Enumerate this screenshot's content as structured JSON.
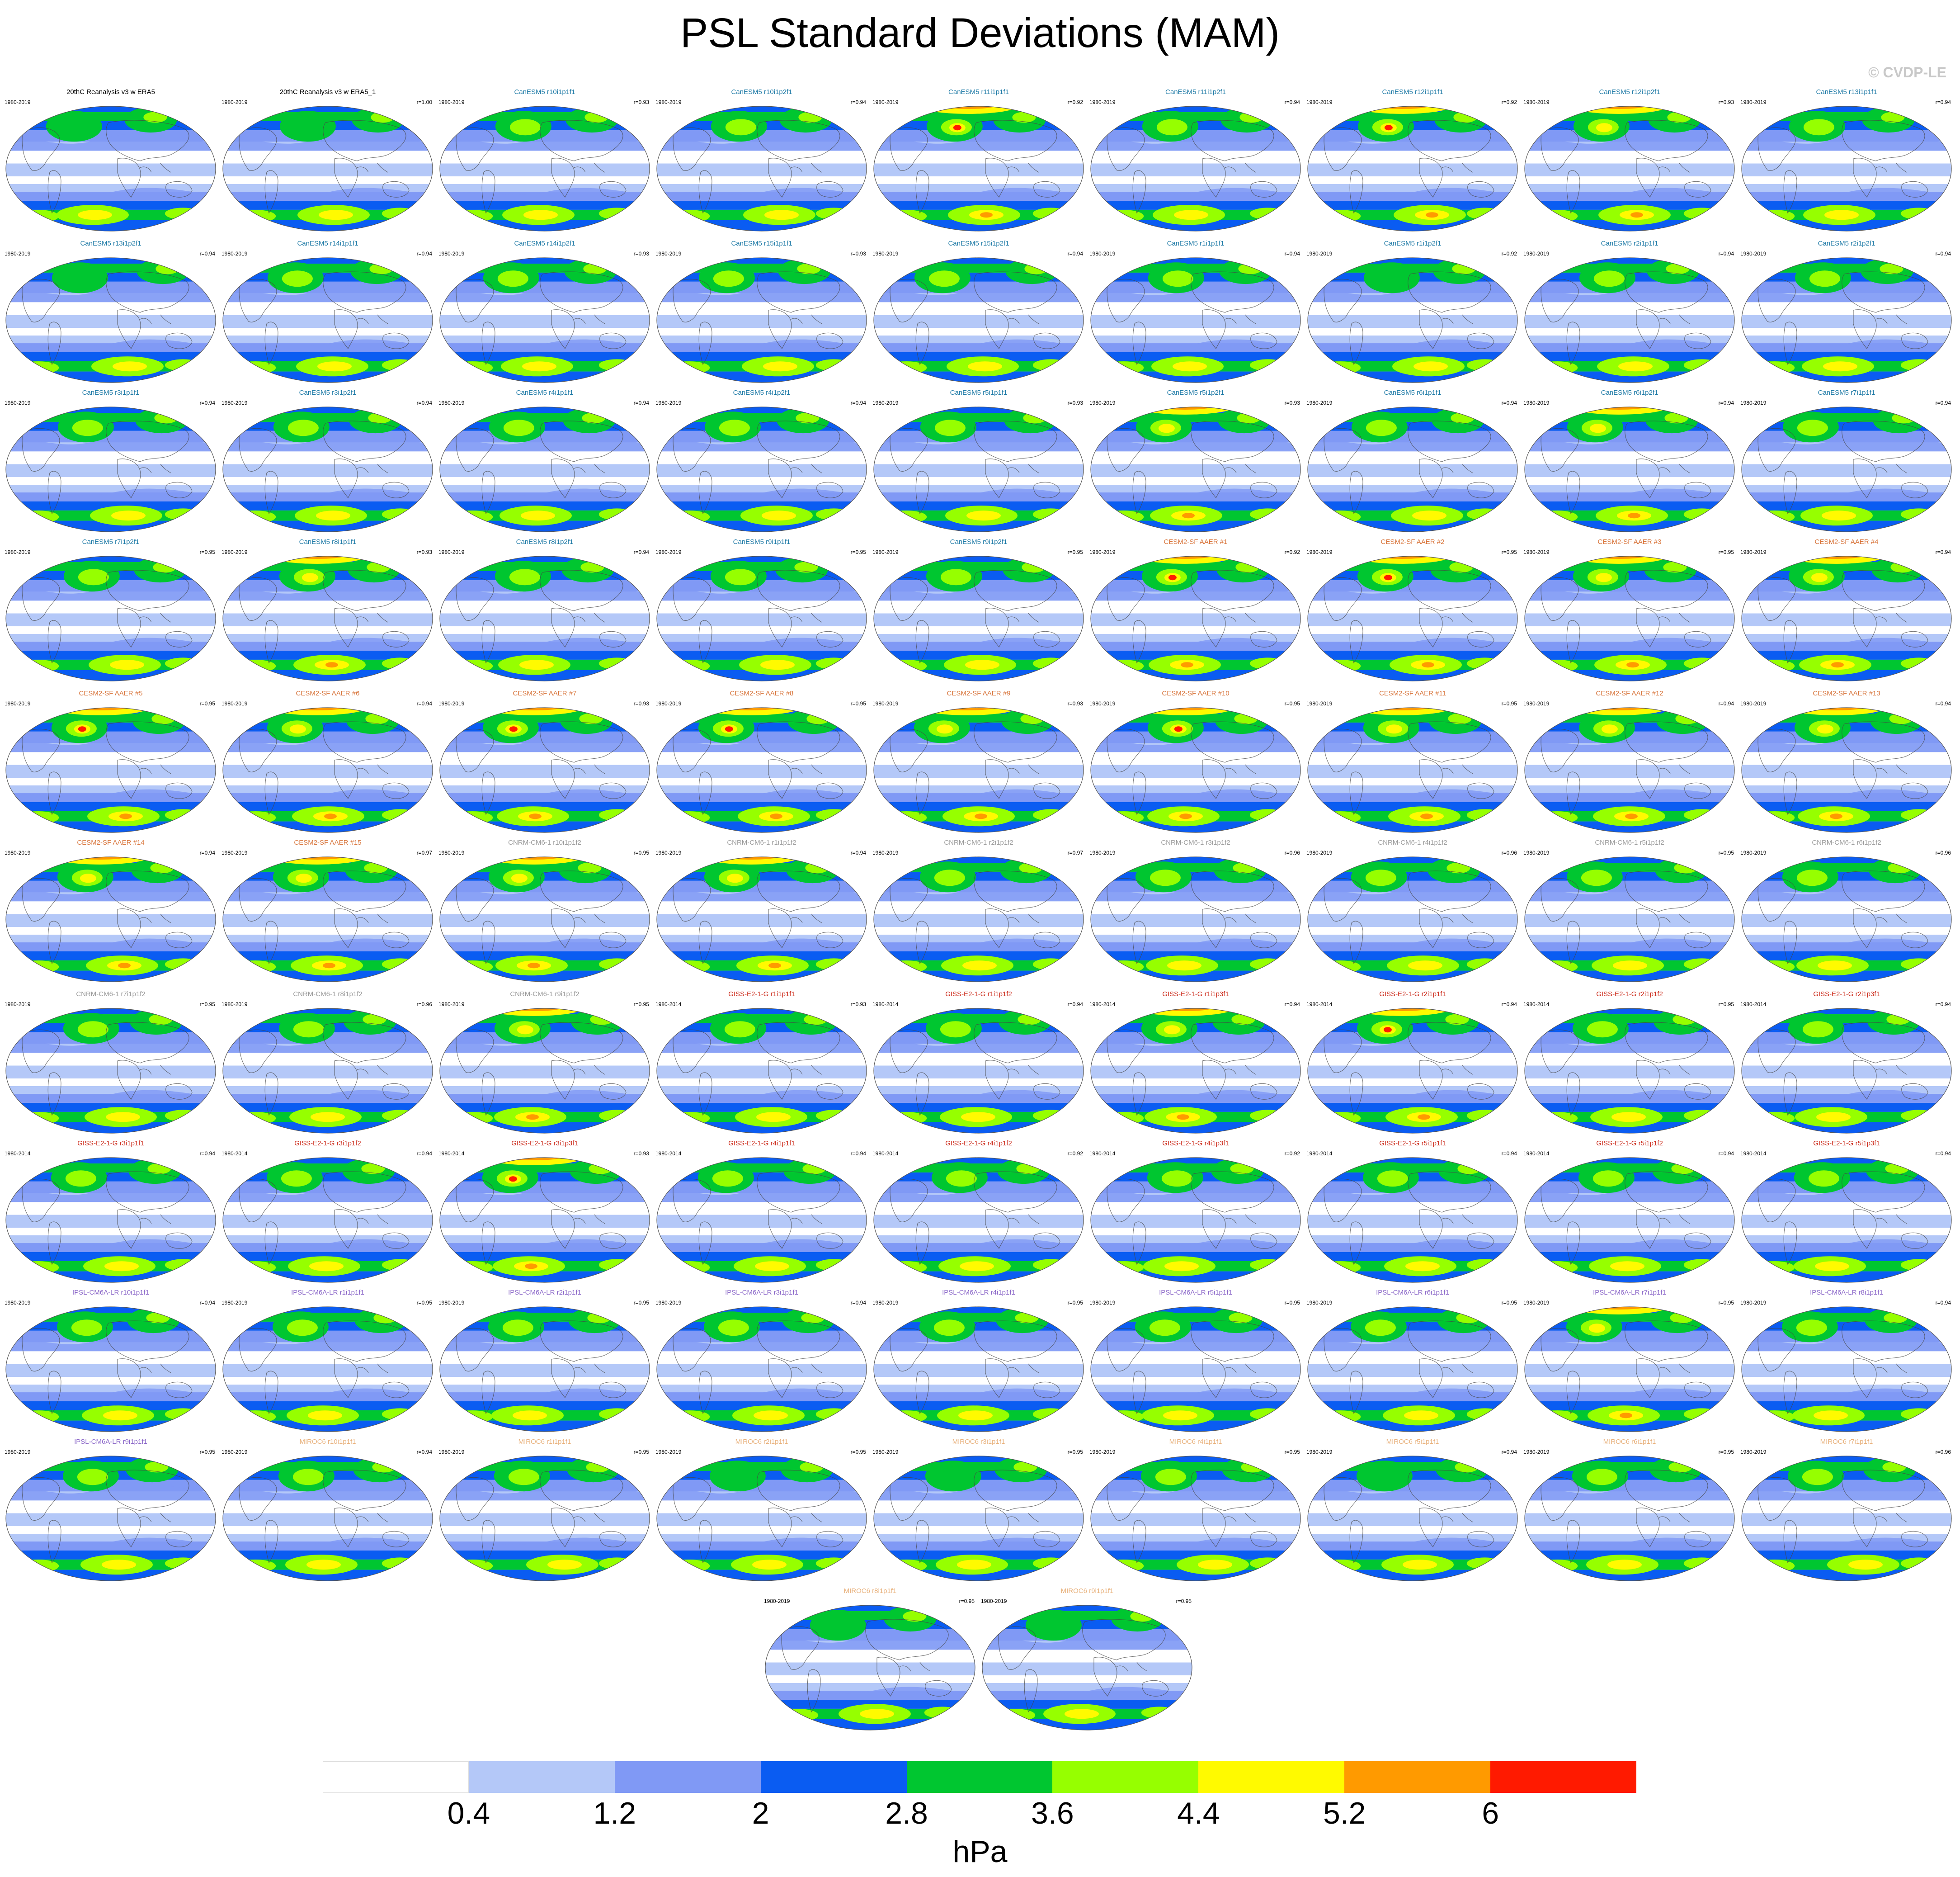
{
  "title": "PSL Standard Deviations (MAM)",
  "watermark": "© CVDP-LE",
  "colors": {
    "canesm5": "#1e7aa6",
    "cesm2": "#d8743a",
    "cnrm": "#9a9a9a",
    "giss": "#cc2a1a",
    "ipsl": "#8a66c8",
    "miroc": "#e8b07a",
    "obs": "#000000"
  },
  "chart_data": {
    "type": "heatmap",
    "variable": "PSL",
    "season": "MAM",
    "unit": "hPa",
    "colorbar": {
      "levels": [
        0.4,
        1.2,
        2,
        2.8,
        3.6,
        4.4,
        5.2,
        6
      ],
      "tick_labels": [
        "0.4",
        "1.2",
        "2",
        "2.8",
        "3.6",
        "4.4",
        "5.2",
        "6"
      ],
      "colors": [
        "#ffffff",
        "#b4c8f8",
        "#8099f5",
        "#0a5cf2",
        "#00c630",
        "#96ff00",
        "#fffa00",
        "#ff9a00",
        "#ff1a00"
      ],
      "unit_label": "hPa"
    },
    "panels": [
      {
        "title": "20thC Reanalysis v3 w ERA5",
        "years": "1980-2019",
        "r": "",
        "group": "obs",
        "intensity": 0
      },
      {
        "title": "20thC Reanalysis v3 w ERA5_1",
        "years": "1980-2019",
        "r": "r=1.00",
        "group": "obs",
        "intensity": 0
      },
      {
        "title": "CanESM5 r10i1p1f1",
        "years": "1980-2019",
        "r": "r=0.93",
        "group": "canesm5",
        "intensity": 1
      },
      {
        "title": "CanESM5 r10i1p2f1",
        "years": "1980-2019",
        "r": "r=0.94",
        "group": "canesm5",
        "intensity": 1
      },
      {
        "title": "CanESM5 r11i1p1f1",
        "years": "1980-2019",
        "r": "r=0.92",
        "group": "canesm5",
        "intensity": 3
      },
      {
        "title": "CanESM5 r11i1p2f1",
        "years": "1980-2019",
        "r": "r=0.94",
        "group": "canesm5",
        "intensity": 1
      },
      {
        "title": "CanESM5 r12i1p1f1",
        "years": "1980-2019",
        "r": "r=0.92",
        "group": "canesm5",
        "intensity": 3
      },
      {
        "title": "CanESM5 r12i1p2f1",
        "years": "1980-2019",
        "r": "r=0.93",
        "group": "canesm5",
        "intensity": 2
      },
      {
        "title": "CanESM5 r13i1p1f1",
        "years": "1980-2019",
        "r": "r=0.94",
        "group": "canesm5",
        "intensity": 1
      },
      {
        "title": "CanESM5 r13i1p2f1",
        "years": "1980-2019",
        "r": "r=0.94",
        "group": "canesm5",
        "intensity": 0
      },
      {
        "title": "CanESM5 r14i1p1f1",
        "years": "1980-2019",
        "r": "r=0.94",
        "group": "canesm5",
        "intensity": 1
      },
      {
        "title": "CanESM5 r14i1p2f1",
        "years": "1980-2019",
        "r": "r=0.93",
        "group": "canesm5",
        "intensity": 1
      },
      {
        "title": "CanESM5 r15i1p1f1",
        "years": "1980-2019",
        "r": "r=0.93",
        "group": "canesm5",
        "intensity": 1
      },
      {
        "title": "CanESM5 r15i1p2f1",
        "years": "1980-2019",
        "r": "r=0.94",
        "group": "canesm5",
        "intensity": 1
      },
      {
        "title": "CanESM5 r1i1p1f1",
        "years": "1980-2019",
        "r": "r=0.94",
        "group": "canesm5",
        "intensity": 1
      },
      {
        "title": "CanESM5 r1i1p2f1",
        "years": "1980-2019",
        "r": "r=0.92",
        "group": "canesm5",
        "intensity": 0
      },
      {
        "title": "CanESM5 r2i1p1f1",
        "years": "1980-2019",
        "r": "r=0.94",
        "group": "canesm5",
        "intensity": 1
      },
      {
        "title": "CanESM5 r2i1p2f1",
        "years": "1980-2019",
        "r": "r=0.94",
        "group": "canesm5",
        "intensity": 1
      },
      {
        "title": "CanESM5 r3i1p1f1",
        "years": "1980-2019",
        "r": "r=0.94",
        "group": "canesm5",
        "intensity": 1
      },
      {
        "title": "CanESM5 r3i1p2f1",
        "years": "1980-2019",
        "r": "r=0.94",
        "group": "canesm5",
        "intensity": 1
      },
      {
        "title": "CanESM5 r4i1p1f1",
        "years": "1980-2019",
        "r": "r=0.94",
        "group": "canesm5",
        "intensity": 1
      },
      {
        "title": "CanESM5 r4i1p2f1",
        "years": "1980-2019",
        "r": "r=0.94",
        "group": "canesm5",
        "intensity": 1
      },
      {
        "title": "CanESM5 r5i1p1f1",
        "years": "1980-2019",
        "r": "r=0.93",
        "group": "canesm5",
        "intensity": 1
      },
      {
        "title": "CanESM5 r5i1p2f1",
        "years": "1980-2019",
        "r": "r=0.93",
        "group": "canesm5",
        "intensity": 2
      },
      {
        "title": "CanESM5 r6i1p1f1",
        "years": "1980-2019",
        "r": "r=0.94",
        "group": "canesm5",
        "intensity": 1
      },
      {
        "title": "CanESM5 r6i1p2f1",
        "years": "1980-2019",
        "r": "r=0.94",
        "group": "canesm5",
        "intensity": 2
      },
      {
        "title": "CanESM5 r7i1p1f1",
        "years": "1980-2019",
        "r": "r=0.94",
        "group": "canesm5",
        "intensity": 1
      },
      {
        "title": "CanESM5 r7i1p2f1",
        "years": "1980-2019",
        "r": "r=0.95",
        "group": "canesm5",
        "intensity": 1
      },
      {
        "title": "CanESM5 r8i1p1f1",
        "years": "1980-2019",
        "r": "r=0.93",
        "group": "canesm5",
        "intensity": 2
      },
      {
        "title": "CanESM5 r8i1p2f1",
        "years": "1980-2019",
        "r": "r=0.94",
        "group": "canesm5",
        "intensity": 1
      },
      {
        "title": "CanESM5 r9i1p1f1",
        "years": "1980-2019",
        "r": "r=0.95",
        "group": "canesm5",
        "intensity": 1
      },
      {
        "title": "CanESM5 r9i1p2f1",
        "years": "1980-2019",
        "r": "r=0.95",
        "group": "canesm5",
        "intensity": 1
      },
      {
        "title": "CESM2-SF AAER #1",
        "years": "1980-2019",
        "r": "r=0.92",
        "group": "cesm2",
        "intensity": 3
      },
      {
        "title": "CESM2-SF AAER #2",
        "years": "1980-2019",
        "r": "r=0.95",
        "group": "cesm2",
        "intensity": 3
      },
      {
        "title": "CESM2-SF AAER #3",
        "years": "1980-2019",
        "r": "r=0.95",
        "group": "cesm2",
        "intensity": 2
      },
      {
        "title": "CESM2-SF AAER #4",
        "years": "1980-2019",
        "r": "r=0.94",
        "group": "cesm2",
        "intensity": 2
      },
      {
        "title": "CESM2-SF AAER #5",
        "years": "1980-2019",
        "r": "r=0.95",
        "group": "cesm2",
        "intensity": 3
      },
      {
        "title": "CESM2-SF AAER #6",
        "years": "1980-2019",
        "r": "r=0.94",
        "group": "cesm2",
        "intensity": 2
      },
      {
        "title": "CESM2-SF AAER #7",
        "years": "1980-2019",
        "r": "r=0.93",
        "group": "cesm2",
        "intensity": 3
      },
      {
        "title": "CESM2-SF AAER #8",
        "years": "1980-2019",
        "r": "r=0.95",
        "group": "cesm2",
        "intensity": 3
      },
      {
        "title": "CESM2-SF AAER #9",
        "years": "1980-2019",
        "r": "r=0.93",
        "group": "cesm2",
        "intensity": 2
      },
      {
        "title": "CESM2-SF AAER #10",
        "years": "1980-2019",
        "r": "r=0.95",
        "group": "cesm2",
        "intensity": 3
      },
      {
        "title": "CESM2-SF AAER #11",
        "years": "1980-2019",
        "r": "r=0.95",
        "group": "cesm2",
        "intensity": 2
      },
      {
        "title": "CESM2-SF AAER #12",
        "years": "1980-2019",
        "r": "r=0.94",
        "group": "cesm2",
        "intensity": 2
      },
      {
        "title": "CESM2-SF AAER #13",
        "years": "1980-2019",
        "r": "r=0.94",
        "group": "cesm2",
        "intensity": 2
      },
      {
        "title": "CESM2-SF AAER #14",
        "years": "1980-2019",
        "r": "r=0.94",
        "group": "cesm2",
        "intensity": 2
      },
      {
        "title": "CESM2-SF AAER #15",
        "years": "1980-2019",
        "r": "r=0.97",
        "group": "cesm2",
        "intensity": 2
      },
      {
        "title": "CNRM-CM6-1 r10i1p1f2",
        "years": "1980-2019",
        "r": "r=0.95",
        "group": "cnrm",
        "intensity": 2
      },
      {
        "title": "CNRM-CM6-1 r1i1p1f2",
        "years": "1980-2019",
        "r": "r=0.94",
        "group": "cnrm",
        "intensity": 2
      },
      {
        "title": "CNRM-CM6-1 r2i1p1f2",
        "years": "1980-2019",
        "r": "r=0.97",
        "group": "cnrm",
        "intensity": 1
      },
      {
        "title": "CNRM-CM6-1 r3i1p1f2",
        "years": "1980-2019",
        "r": "r=0.96",
        "group": "cnrm",
        "intensity": 1
      },
      {
        "title": "CNRM-CM6-1 r4i1p1f2",
        "years": "1980-2019",
        "r": "r=0.96",
        "group": "cnrm",
        "intensity": 1
      },
      {
        "title": "CNRM-CM6-1 r5i1p1f2",
        "years": "1980-2019",
        "r": "r=0.95",
        "group": "cnrm",
        "intensity": 1
      },
      {
        "title": "CNRM-CM6-1 r6i1p1f2",
        "years": "1980-2019",
        "r": "r=0.96",
        "group": "cnrm",
        "intensity": 1
      },
      {
        "title": "CNRM-CM6-1 r7i1p1f2",
        "years": "1980-2019",
        "r": "r=0.95",
        "group": "cnrm",
        "intensity": 1
      },
      {
        "title": "CNRM-CM6-1 r8i1p1f2",
        "years": "1980-2019",
        "r": "r=0.96",
        "group": "cnrm",
        "intensity": 1
      },
      {
        "title": "CNRM-CM6-1 r9i1p1f2",
        "years": "1980-2019",
        "r": "r=0.95",
        "group": "cnrm",
        "intensity": 2
      },
      {
        "title": "GISS-E2-1-G r1i1p1f1",
        "years": "1980-2014",
        "r": "r=0.93",
        "group": "giss",
        "intensity": 1
      },
      {
        "title": "GISS-E2-1-G r1i1p1f2",
        "years": "1980-2014",
        "r": "r=0.94",
        "group": "giss",
        "intensity": 1
      },
      {
        "title": "GISS-E2-1-G r1i1p3f1",
        "years": "1980-2014",
        "r": "r=0.94",
        "group": "giss",
        "intensity": 2
      },
      {
        "title": "GISS-E2-1-G r2i1p1f1",
        "years": "1980-2014",
        "r": "r=0.94",
        "group": "giss",
        "intensity": 3
      },
      {
        "title": "GISS-E2-1-G r2i1p1f2",
        "years": "1980-2014",
        "r": "r=0.95",
        "group": "giss",
        "intensity": 1
      },
      {
        "title": "GISS-E2-1-G r2i1p3f1",
        "years": "1980-2014",
        "r": "r=0.94",
        "group": "giss",
        "intensity": 1
      },
      {
        "title": "GISS-E2-1-G r3i1p1f1",
        "years": "1980-2014",
        "r": "r=0.94",
        "group": "giss",
        "intensity": 1
      },
      {
        "title": "GISS-E2-1-G r3i1p1f2",
        "years": "1980-2014",
        "r": "r=0.94",
        "group": "giss",
        "intensity": 1
      },
      {
        "title": "GISS-E2-1-G r3i1p3f1",
        "years": "1980-2014",
        "r": "r=0.93",
        "group": "giss",
        "intensity": 3
      },
      {
        "title": "GISS-E2-1-G r4i1p1f1",
        "years": "1980-2014",
        "r": "r=0.94",
        "group": "giss",
        "intensity": 1
      },
      {
        "title": "GISS-E2-1-G r4i1p1f2",
        "years": "1980-2014",
        "r": "r=0.92",
        "group": "giss",
        "intensity": 1
      },
      {
        "title": "GISS-E2-1-G r4i1p3f1",
        "years": "1980-2014",
        "r": "r=0.92",
        "group": "giss",
        "intensity": 1
      },
      {
        "title": "GISS-E2-1-G r5i1p1f1",
        "years": "1980-2014",
        "r": "r=0.94",
        "group": "giss",
        "intensity": 1
      },
      {
        "title": "GISS-E2-1-G r5i1p1f2",
        "years": "1980-2014",
        "r": "r=0.94",
        "group": "giss",
        "intensity": 1
      },
      {
        "title": "GISS-E2-1-G r5i1p3f1",
        "years": "1980-2014",
        "r": "r=0.94",
        "group": "giss",
        "intensity": 1
      },
      {
        "title": "IPSL-CM6A-LR r10i1p1f1",
        "years": "1980-2019",
        "r": "r=0.94",
        "group": "ipsl",
        "intensity": 1
      },
      {
        "title": "IPSL-CM6A-LR r1i1p1f1",
        "years": "1980-2019",
        "r": "r=0.95",
        "group": "ipsl",
        "intensity": 1
      },
      {
        "title": "IPSL-CM6A-LR r2i1p1f1",
        "years": "1980-2019",
        "r": "r=0.95",
        "group": "ipsl",
        "intensity": 1
      },
      {
        "title": "IPSL-CM6A-LR r3i1p1f1",
        "years": "1980-2019",
        "r": "r=0.94",
        "group": "ipsl",
        "intensity": 1
      },
      {
        "title": "IPSL-CM6A-LR r4i1p1f1",
        "years": "1980-2019",
        "r": "r=0.95",
        "group": "ipsl",
        "intensity": 1
      },
      {
        "title": "IPSL-CM6A-LR r5i1p1f1",
        "years": "1980-2019",
        "r": "r=0.95",
        "group": "ipsl",
        "intensity": 1
      },
      {
        "title": "IPSL-CM6A-LR r6i1p1f1",
        "years": "1980-2019",
        "r": "r=0.95",
        "group": "ipsl",
        "intensity": 1
      },
      {
        "title": "IPSL-CM6A-LR r7i1p1f1",
        "years": "1980-2019",
        "r": "r=0.95",
        "group": "ipsl",
        "intensity": 2
      },
      {
        "title": "IPSL-CM6A-LR r8i1p1f1",
        "years": "1980-2019",
        "r": "r=0.94",
        "group": "ipsl",
        "intensity": 1
      },
      {
        "title": "IPSL-CM6A-LR r9i1p1f1",
        "years": "1980-2019",
        "r": "r=0.95",
        "group": "ipsl",
        "intensity": 1
      },
      {
        "title": "MIROC6 r10i1p1f1",
        "years": "1980-2019",
        "r": "r=0.94",
        "group": "miroc",
        "intensity": 1
      },
      {
        "title": "MIROC6 r1i1p1f1",
        "years": "1980-2019",
        "r": "r=0.95",
        "group": "miroc",
        "intensity": 1
      },
      {
        "title": "MIROC6 r2i1p1f1",
        "years": "1980-2019",
        "r": "r=0.95",
        "group": "miroc",
        "intensity": 0
      },
      {
        "title": "MIROC6 r3i1p1f1",
        "years": "1980-2019",
        "r": "r=0.95",
        "group": "miroc",
        "intensity": 0
      },
      {
        "title": "MIROC6 r4i1p1f1",
        "years": "1980-2019",
        "r": "r=0.95",
        "group": "miroc",
        "intensity": 1
      },
      {
        "title": "MIROC6 r5i1p1f1",
        "years": "1980-2019",
        "r": "r=0.94",
        "group": "miroc",
        "intensity": 0
      },
      {
        "title": "MIROC6 r6i1p1f1",
        "years": "1980-2019",
        "r": "r=0.95",
        "group": "miroc",
        "intensity": 1
      },
      {
        "title": "MIROC6 r7i1p1f1",
        "years": "1980-2019",
        "r": "r=0.96",
        "group": "miroc",
        "intensity": 1
      },
      {
        "title": "MIROC6 r8i1p1f1",
        "years": "1980-2019",
        "r": "r=0.95",
        "group": "miroc",
        "intensity": 0
      },
      {
        "title": "MIROC6 r9i1p1f1",
        "years": "1980-2019",
        "r": "r=0.95",
        "group": "miroc",
        "intensity": 0
      }
    ]
  }
}
